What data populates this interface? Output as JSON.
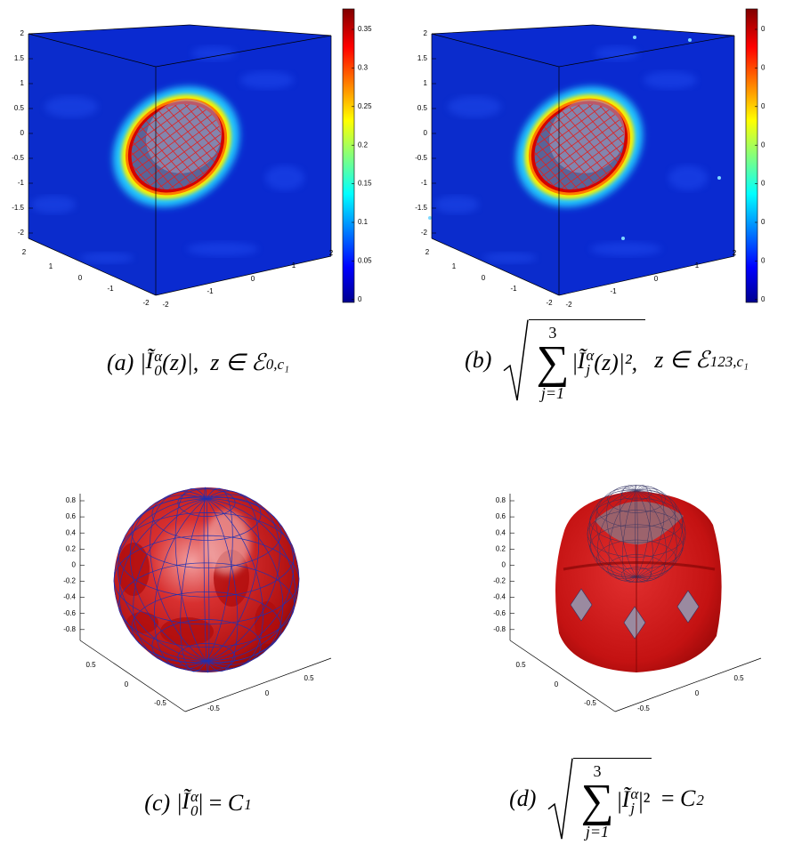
{
  "panels": [
    {
      "z_ticks": [
        2,
        1.5,
        1,
        0.5,
        0,
        -0.5,
        -1,
        -1.5,
        -2
      ],
      "x_ticks": [
        2,
        1,
        0,
        -1,
        -2
      ],
      "y_ticks": [
        -2,
        -1,
        0,
        1,
        2
      ],
      "colorbar_ticks": [
        0.35,
        0.3,
        0.25,
        0.2,
        0.15,
        0.1,
        0.05,
        0
      ],
      "caption": {
        "label": "(a)",
        "rest": [
          {
            "t": "|"
          },
          {
            "t": "Ĩ",
            "sup": "α",
            "sub": "0"
          },
          {
            "t": "(z)|,  z ∈ "
          },
          {
            "t": "ℰ",
            "sub": "0,c₁"
          }
        ]
      }
    },
    {
      "z_ticks": [
        2,
        1.5,
        1,
        0.5,
        0,
        -0.5,
        -1,
        -1.5,
        -2
      ],
      "x_ticks": [
        2,
        1,
        0,
        -1,
        -2
      ],
      "y_ticks": [
        -2,
        -1,
        0,
        1,
        2
      ],
      "colorbar_ticks": [
        "0",
        "0",
        "0",
        "0",
        "0",
        "0",
        "0",
        "0"
      ],
      "caption": {
        "label": "(b)",
        "radicand": [
          {
            "sum": "∑",
            "sup": "3",
            "sub": "j=1"
          },
          {
            "t": "|"
          },
          {
            "t": "Ĩ",
            "sup": "α",
            "sub": "j"
          },
          {
            "t": "(z)|², "
          }
        ],
        "rest": [
          {
            "t": " z ∈ "
          },
          {
            "t": "ℰ",
            "sub": "123,c₁"
          }
        ]
      }
    },
    {
      "z_ticks": [
        0.8,
        0.6,
        0.4,
        0.2,
        0,
        -0.2,
        -0.4,
        -0.6,
        -0.8
      ],
      "x_ticks": [
        0.5,
        0,
        -0.5
      ],
      "y_ticks": [
        -0.5,
        0,
        0.5
      ],
      "caption": {
        "label": "(c)",
        "rest": [
          {
            "t": "|"
          },
          {
            "t": "Ĩ",
            "sup": "α",
            "sub": "0"
          },
          {
            "t": "| = "
          },
          {
            "t": "C",
            "sub": "1"
          }
        ]
      }
    },
    {
      "z_ticks": [
        0.8,
        0.6,
        0.4,
        0.2,
        0,
        -0.2,
        -0.4,
        -0.6,
        -0.8
      ],
      "x_ticks": [
        0.5,
        0,
        -0.5
      ],
      "y_ticks": [
        -0.5,
        0,
        0.5
      ],
      "caption": {
        "label": "(d)",
        "radicand": [
          {
            "sum": "∑",
            "sup": "3",
            "sub": "j=1"
          },
          {
            "t": "|"
          },
          {
            "t": "Ĩ",
            "sup": "α",
            "sub": "j"
          },
          {
            "t": "|²"
          }
        ],
        "rest": [
          {
            "t": " = "
          },
          {
            "t": "C",
            "sub": "2"
          }
        ]
      }
    }
  ]
}
